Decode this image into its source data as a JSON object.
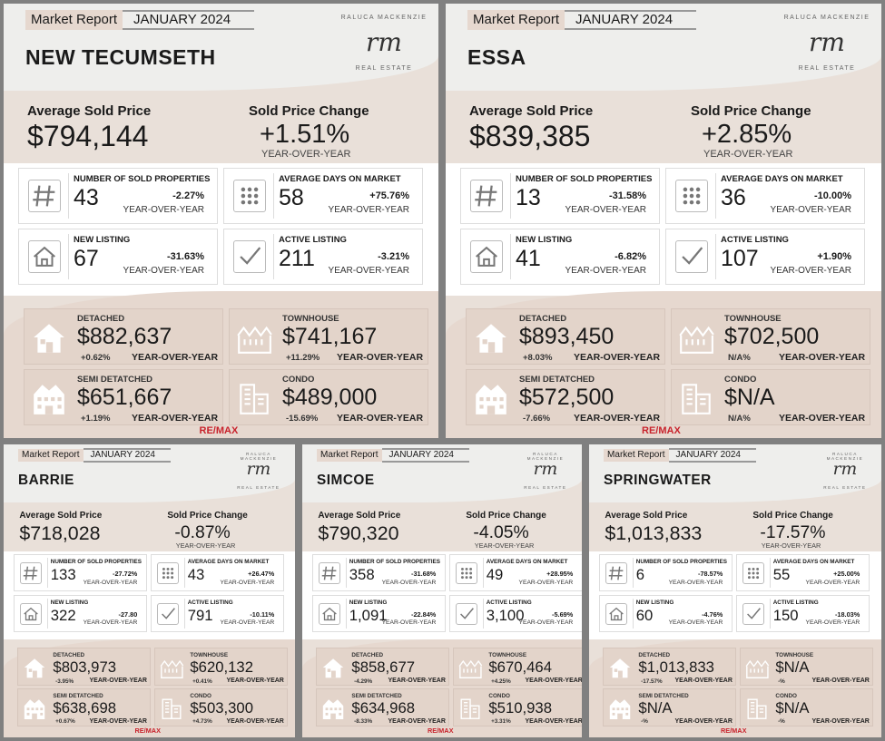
{
  "common": {
    "market_report": "Market Report",
    "month": "JANUARY 2024",
    "avg_sold_price_label": "Average Sold Price",
    "sold_price_change_label": "Sold Price Change",
    "yoy": "YEAR-OVER-YEAR",
    "sold_props_label": "NUMBER OF SOLD PROPERTIES",
    "avg_days_label": "AVERAGE DAYS ON MARKET",
    "new_listing_label": "NEW LISTING",
    "active_listing_label": "ACTIVE LISTING",
    "detached_label": "DETACHED",
    "townhouse_label": "TOWNHOUSE",
    "semi_label": "SEMI DETATCHED",
    "condo_label": "CONDO",
    "logo_initials": "rm",
    "logo_top": "RALUCA MACKENZIE",
    "logo_bottom": "REAL ESTATE",
    "remax_re": "RE/",
    "remax_max": "MAX"
  },
  "cards": [
    {
      "city": "NEW TECUMSETH",
      "avg_price": "$794,144",
      "price_change": "+1.51%",
      "sold_props": "43",
      "sold_props_pct": "-2.27%",
      "avg_days": "58",
      "avg_days_pct": "+75.76%",
      "new_listing": "67",
      "new_listing_pct": "-31.63%",
      "active_listing": "211",
      "active_listing_pct": "-3.21%",
      "detached": "$882,637",
      "detached_pct": "+0.62%",
      "townhouse": "$741,167",
      "townhouse_pct": "+11.29%",
      "semi": "$651,667",
      "semi_pct": "+1.19%",
      "condo": "$489,000",
      "condo_pct": "-15.69%"
    },
    {
      "city": "ESSA",
      "avg_price": "$839,385",
      "price_change": "+2.85%",
      "sold_props": "13",
      "sold_props_pct": "-31.58%",
      "avg_days": "36",
      "avg_days_pct": "-10.00%",
      "new_listing": "41",
      "new_listing_pct": "-6.82%",
      "active_listing": "107",
      "active_listing_pct": "+1.90%",
      "detached": "$893,450",
      "detached_pct": "+8.03%",
      "townhouse": "$702,500",
      "townhouse_pct": "N/A%",
      "semi": "$572,500",
      "semi_pct": "-7.66%",
      "condo": "$N/A",
      "condo_pct": "N/A%"
    },
    {
      "city": "BARRIE",
      "avg_price": "$718,028",
      "price_change": "-0.87%",
      "sold_props": "133",
      "sold_props_pct": "-27.72%",
      "avg_days": "43",
      "avg_days_pct": "+26.47%",
      "new_listing": "322",
      "new_listing_pct": "-27.80",
      "active_listing": "791",
      "active_listing_pct": "-10.11%",
      "detached": "$803,973",
      "detached_pct": "-3.95%",
      "townhouse": "$620,132",
      "townhouse_pct": "+0.41%",
      "semi": "$638,698",
      "semi_pct": "+0.67%",
      "condo": "$503,300",
      "condo_pct": "+4.73%"
    },
    {
      "city": "SIMCOE",
      "avg_price": "$790,320",
      "price_change": "-4.05%",
      "sold_props": "358",
      "sold_props_pct": "-31.68%",
      "avg_days": "49",
      "avg_days_pct": "+28.95%",
      "new_listing": "1,091",
      "new_listing_pct": "-22.84%",
      "active_listing": "3,100",
      "active_listing_pct": "-5.69%",
      "detached": "$858,677",
      "detached_pct": "-4.29%",
      "townhouse": "$670,464",
      "townhouse_pct": "+4.25%",
      "semi": "$634,968",
      "semi_pct": "-8.33%",
      "condo": "$510,938",
      "condo_pct": "+3.31%"
    },
    {
      "city": "SPRINGWATER",
      "avg_price": "$1,013,833",
      "price_change": "-17.57%",
      "sold_props": "6",
      "sold_props_pct": "-78.57%",
      "avg_days": "55",
      "avg_days_pct": "+25.00%",
      "new_listing": "60",
      "new_listing_pct": "-4.76%",
      "active_listing": "150",
      "active_listing_pct": "-18.03%",
      "detached": "$1,013,833",
      "detached_pct": "-17.57%",
      "townhouse": "$N/A",
      "townhouse_pct": "-%",
      "semi": "$N/A",
      "semi_pct": "-%",
      "condo": "$N/A",
      "condo_pct": "-%"
    }
  ]
}
